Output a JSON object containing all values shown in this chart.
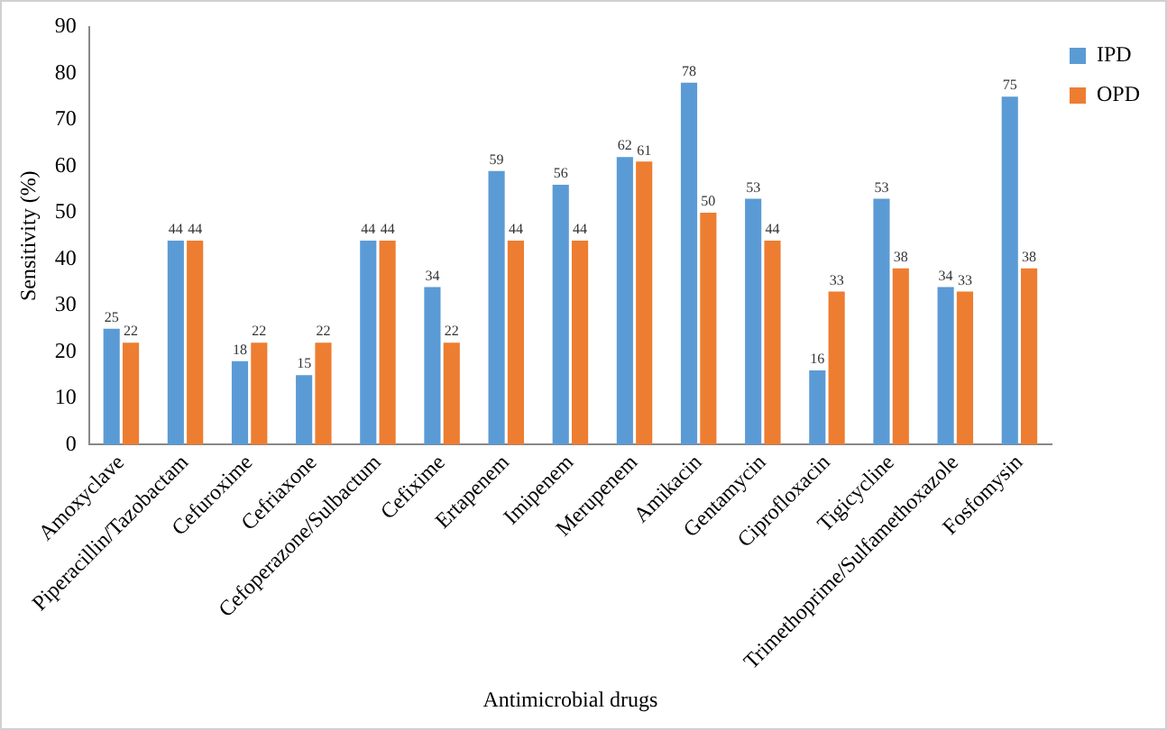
{
  "chart_data": {
    "type": "bar",
    "xlabel": "Antimicrobial drugs",
    "ylabel": "Sensitivity (%)",
    "categories": [
      "Amoxyclave",
      "Piperacillin/Tazobactam",
      "Cefuroxime",
      "Cefriaxone",
      "Cefoperazone/Sulbactum",
      "Cefixime",
      "Ertapenem",
      "Imipenem",
      "Merupenem",
      "Amikacin",
      "Gentamycin",
      "Ciprofloxacin",
      "Tigicycline",
      "Trimethoprime/Sulfamethoxazole",
      "Fosfomysin"
    ],
    "series": [
      {
        "name": "IPD",
        "color": "#5b9bd5",
        "values": [
          25,
          44,
          18,
          15,
          44,
          34,
          59,
          56,
          62,
          78,
          53,
          16,
          53,
          34,
          75
        ]
      },
      {
        "name": "OPD",
        "color": "#ed7d31",
        "values": [
          22,
          44,
          22,
          22,
          44,
          22,
          44,
          44,
          61,
          50,
          44,
          33,
          38,
          33,
          38
        ]
      }
    ],
    "ylim": [
      0,
      90
    ],
    "yticks": [
      0,
      10,
      20,
      30,
      40,
      50,
      60,
      70,
      80,
      90
    ],
    "grid": false,
    "legend": "top right",
    "data_labels": true
  }
}
